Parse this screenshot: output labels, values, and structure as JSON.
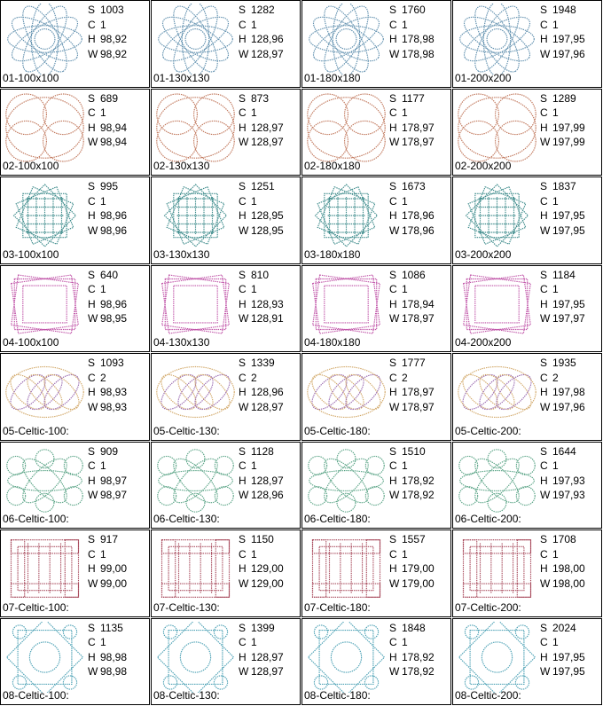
{
  "labels": [
    "S",
    "C",
    "H",
    "W"
  ],
  "rows": [
    {
      "cells": [
        {
          "name": "01-100x100",
          "s": 1003,
          "c": 1,
          "h": "98,92",
          "w": "98,92"
        },
        {
          "name": "01-130x130",
          "s": 1282,
          "c": 1,
          "h": "128,96",
          "w": "128,97"
        },
        {
          "name": "01-180x180",
          "s": 1760,
          "c": 1,
          "h": "178,98",
          "w": "178,98"
        },
        {
          "name": "01-200x200",
          "s": 1948,
          "c": 1,
          "h": "197,95",
          "w": "197,96"
        }
      ]
    },
    {
      "cells": [
        {
          "name": "02-100x100",
          "s": 689,
          "c": 1,
          "h": "98,94",
          "w": "98,94"
        },
        {
          "name": "02-130x130",
          "s": 873,
          "c": 1,
          "h": "128,97",
          "w": "128,97"
        },
        {
          "name": "02-180x180",
          "s": 1177,
          "c": 1,
          "h": "178,97",
          "w": "178,97"
        },
        {
          "name": "02-200x200",
          "s": 1289,
          "c": 1,
          "h": "197,99",
          "w": "197,99"
        }
      ]
    },
    {
      "cells": [
        {
          "name": "03-100x100",
          "s": 995,
          "c": 1,
          "h": "98,96",
          "w": "98,96"
        },
        {
          "name": "03-130x130",
          "s": 1251,
          "c": 1,
          "h": "128,95",
          "w": "128,95"
        },
        {
          "name": "03-180x180",
          "s": 1673,
          "c": 1,
          "h": "178,96",
          "w": "178,96"
        },
        {
          "name": "03-200x200",
          "s": 1837,
          "c": 1,
          "h": "197,95",
          "w": "197,95"
        }
      ]
    },
    {
      "cells": [
        {
          "name": "04-100x100",
          "s": 640,
          "c": 1,
          "h": "98,96",
          "w": "98,95"
        },
        {
          "name": "04-130x130",
          "s": 810,
          "c": 1,
          "h": "128,93",
          "w": "128,91"
        },
        {
          "name": "04-180x180",
          "s": 1086,
          "c": 1,
          "h": "178,94",
          "w": "178,97"
        },
        {
          "name": "04-200x200",
          "s": 1184,
          "c": 1,
          "h": "197,95",
          "w": "197,97"
        }
      ]
    },
    {
      "cells": [
        {
          "name": "05-Celtic-100:",
          "s": 1093,
          "c": 2,
          "h": "98,93",
          "w": "98,93"
        },
        {
          "name": "05-Celtic-130:",
          "s": 1339,
          "c": 2,
          "h": "128,96",
          "w": "128,97"
        },
        {
          "name": "05-Celtic-180:",
          "s": 1777,
          "c": 2,
          "h": "178,97",
          "w": "178,97"
        },
        {
          "name": "05-Celtic-200:",
          "s": 1935,
          "c": 2,
          "h": "197,98",
          "w": "197,96"
        }
      ]
    },
    {
      "cells": [
        {
          "name": "06-Celtic-100:",
          "s": 909,
          "c": 1,
          "h": "98,97",
          "w": "98,97"
        },
        {
          "name": "06-Celtic-130:",
          "s": 1128,
          "c": 1,
          "h": "128,97",
          "w": "128,96"
        },
        {
          "name": "06-Celtic-180:",
          "s": 1510,
          "c": 1,
          "h": "178,92",
          "w": "178,92"
        },
        {
          "name": "06-Celtic-200:",
          "s": 1644,
          "c": 1,
          "h": "197,93",
          "w": "197,93"
        }
      ]
    },
    {
      "cells": [
        {
          "name": "07-Celtic-100:",
          "s": 917,
          "c": 1,
          "h": "99,00",
          "w": "99,00"
        },
        {
          "name": "07-Celtic-130:",
          "s": 1150,
          "c": 1,
          "h": "129,00",
          "w": "129,00"
        },
        {
          "name": "07-Celtic-180:",
          "s": 1557,
          "c": 1,
          "h": "179,00",
          "w": "179,00"
        },
        {
          "name": "07-Celtic-200:",
          "s": 1708,
          "c": 1,
          "h": "198,00",
          "w": "198,00"
        }
      ]
    },
    {
      "cells": [
        {
          "name": "08-Celtic-100:",
          "s": 1135,
          "c": 1,
          "h": "98,98",
          "w": "98,98"
        },
        {
          "name": "08-Celtic-130:",
          "s": 1399,
          "c": 1,
          "h": "128,97",
          "w": "128,97"
        },
        {
          "name": "08-Celtic-180:",
          "s": 1848,
          "c": 1,
          "h": "178,92",
          "w": "178,92"
        },
        {
          "name": "08-Celtic-200:",
          "s": 2024,
          "c": 1,
          "h": "197,95",
          "w": "197,95"
        }
      ]
    }
  ]
}
